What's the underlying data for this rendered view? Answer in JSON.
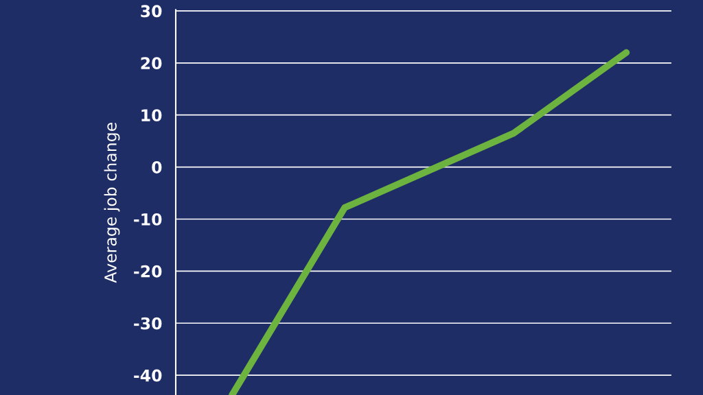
{
  "chart_data": {
    "type": "line",
    "ylabel": "Average job change",
    "categories": [
      null,
      null,
      null,
      null,
      null,
      null,
      null,
      null
    ],
    "series": [
      {
        "color": "#6db33f",
        "values": [
          -43.8,
          null,
          -7.8,
          null,
          null,
          6.5,
          null,
          22
        ]
      }
    ],
    "ylim": [
      -43.8,
      30.2
    ],
    "yticks": [
      -40,
      -30,
      -20,
      -10,
      0,
      10,
      20,
      30
    ],
    "grid": "y",
    "tick_labels": "y",
    "marker": "none",
    "line_style": "solid"
  }
}
